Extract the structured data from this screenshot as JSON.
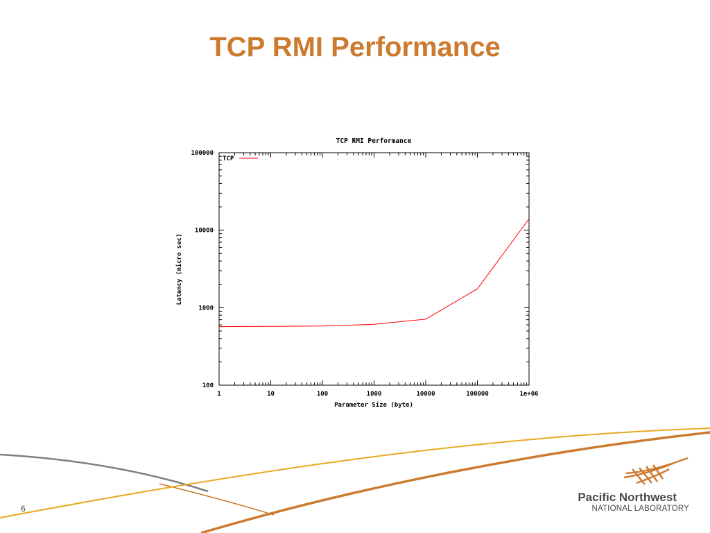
{
  "slide": {
    "title": "TCP RMI Performance",
    "page_number": "6",
    "accent_color": "#cc7a2e",
    "logo": {
      "line1": "Pacific Northwest",
      "line2": "NATIONAL LABORATORY",
      "icon": "pnnl-logo-icon"
    }
  },
  "chart_data": {
    "type": "line",
    "title": "TCP RMI Performance",
    "xlabel": "Parameter Size (byte)",
    "ylabel": "Latency (micro sec)",
    "x_scale": "log",
    "y_scale": "log",
    "xlim": [
      1,
      1000000
    ],
    "ylim": [
      100,
      100000
    ],
    "x_ticks": [
      1,
      10,
      100,
      1000,
      10000,
      100000,
      1000000
    ],
    "x_tick_labels": [
      "1",
      "10",
      "100",
      "1000",
      "10000",
      "100000",
      "1e+06"
    ],
    "y_ticks": [
      100,
      1000,
      10000,
      100000
    ],
    "y_tick_labels": [
      "100",
      "1000",
      "10000",
      "100000"
    ],
    "grid": false,
    "legend": "top-left",
    "series": [
      {
        "name": "TCP",
        "color": "#ff0000",
        "x": [
          1,
          10,
          100,
          1000,
          10000,
          100000,
          1000000
        ],
        "y": [
          570,
          575,
          580,
          610,
          710,
          1750,
          14000
        ]
      }
    ]
  }
}
